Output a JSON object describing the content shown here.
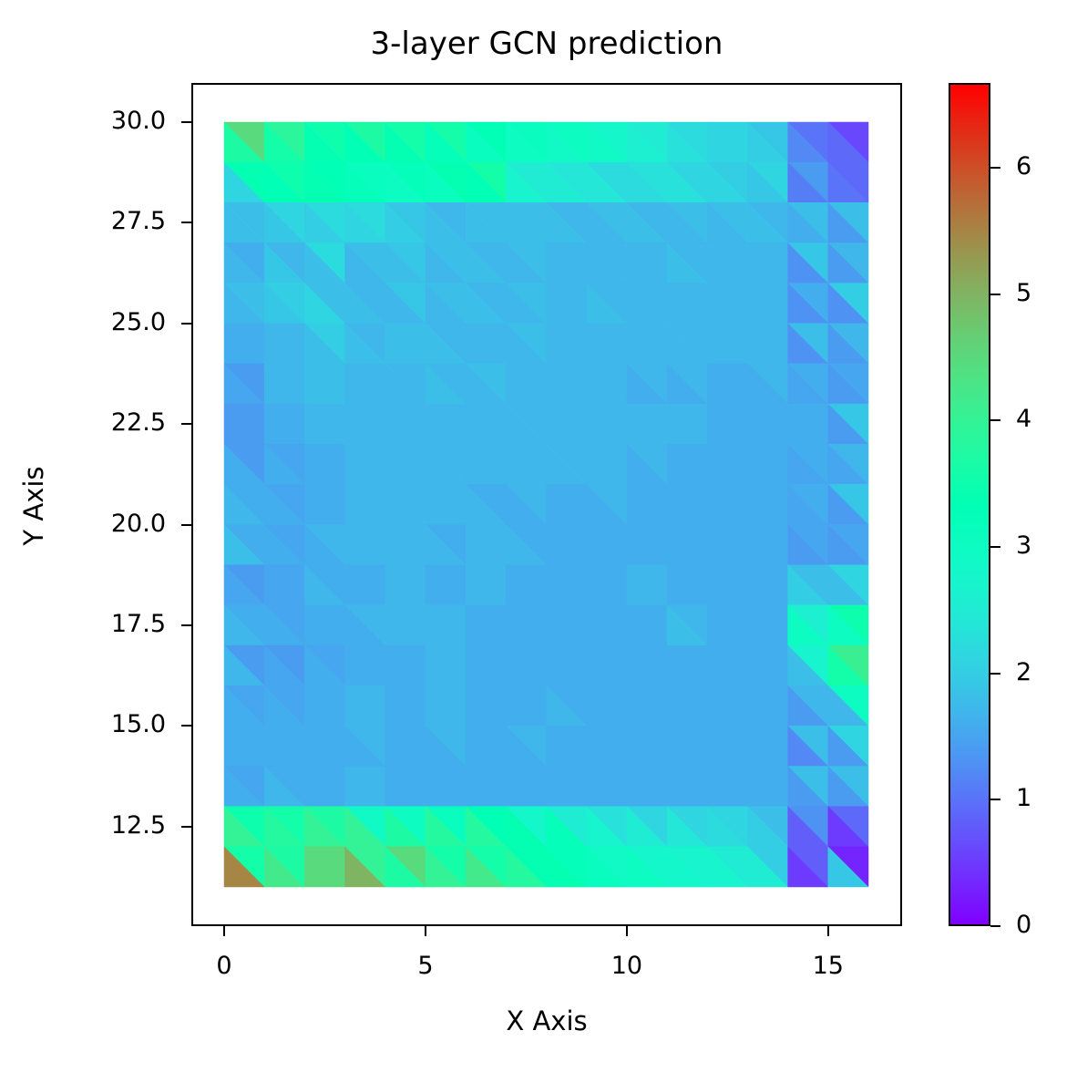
{
  "chart_data": {
    "type": "heatmap",
    "subtype": "tripcolor",
    "title": "3-layer GCN prediction",
    "xlabel": "X Axis",
    "ylabel": "Y Axis",
    "xlim": [
      -0.8,
      16.8
    ],
    "ylim": [
      10.2,
      31.0
    ],
    "x_ticks": [
      0,
      5,
      10,
      15
    ],
    "y_ticks": [
      12.5,
      15.0,
      17.5,
      20.0,
      22.5,
      25.0,
      27.5,
      30.0
    ],
    "x_tick_labels": [
      "0",
      "5",
      "10",
      "15"
    ],
    "y_tick_labels": [
      "12.5",
      "15.0",
      "17.5",
      "20.0",
      "22.5",
      "25.0",
      "27.5",
      "30.0"
    ],
    "grid_x_range": [
      0,
      16
    ],
    "grid_y_range": [
      11,
      30
    ],
    "colormap": "rainbow",
    "colorbar": {
      "range": [
        0,
        6.67
      ],
      "ticks": [
        0,
        1,
        2,
        3,
        4,
        5,
        6
      ],
      "tick_labels": [
        "0",
        "1",
        "2",
        "3",
        "4",
        "5",
        "6"
      ]
    },
    "grid": false,
    "legend": null,
    "cell_note": "Rows from top (y=30..29) to bottom (y=12..11); each cell = [upper-right triangle, lower-left triangle] values",
    "cells": [
      [
        [
          4.5,
          3.7
        ],
        [
          3.9,
          3.6
        ],
        [
          3.5,
          3.4
        ],
        [
          3.7,
          3.3
        ],
        [
          3.6,
          3.4
        ],
        [
          3.6,
          3.2
        ],
        [
          3.3,
          3.1
        ],
        [
          3.1,
          3.0
        ],
        [
          3.0,
          2.9
        ],
        [
          2.8,
          2.9
        ],
        [
          2.5,
          2.6
        ],
        [
          2.2,
          2.3
        ],
        [
          2.1,
          2.1
        ],
        [
          1.9,
          2.0
        ],
        [
          1.0,
          1.2
        ],
        [
          0.6,
          0.9
        ]
      ],
      [
        [
          3.4,
          2.1
        ],
        [
          3.5,
          3.3
        ],
        [
          3.3,
          3.4
        ],
        [
          3.1,
          3.2
        ],
        [
          3.2,
          3.0
        ],
        [
          3.4,
          3.1
        ],
        [
          3.6,
          3.3
        ],
        [
          2.5,
          2.7
        ],
        [
          2.4,
          2.5
        ],
        [
          2.2,
          2.4
        ],
        [
          2.3,
          2.2
        ],
        [
          2.1,
          2.3
        ],
        [
          2.0,
          2.1
        ],
        [
          2.1,
          1.9
        ],
        [
          1.4,
          1.1
        ],
        [
          0.9,
          1.0
        ]
      ],
      [
        [
          1.8,
          1.8
        ],
        [
          2.1,
          1.9
        ],
        [
          2.2,
          2.0
        ],
        [
          2.2,
          2.1
        ],
        [
          1.9,
          2.0
        ],
        [
          1.7,
          1.8
        ],
        [
          1.8,
          1.8
        ],
        [
          1.8,
          1.8
        ],
        [
          1.7,
          1.8
        ],
        [
          1.8,
          1.7
        ],
        [
          1.7,
          1.8
        ],
        [
          1.8,
          1.7
        ],
        [
          1.8,
          1.7
        ],
        [
          1.7,
          1.8
        ],
        [
          1.8,
          1.6
        ],
        [
          1.8,
          1.4
        ]
      ],
      [
        [
          1.6,
          1.7
        ],
        [
          1.7,
          1.9
        ],
        [
          2.2,
          1.8
        ],
        [
          1.8,
          1.7
        ],
        [
          1.9,
          1.8
        ],
        [
          1.8,
          1.7
        ],
        [
          1.7,
          1.8
        ],
        [
          1.8,
          1.7
        ],
        [
          1.7,
          1.7
        ],
        [
          1.7,
          1.7
        ],
        [
          1.7,
          1.7
        ],
        [
          1.7,
          1.8
        ],
        [
          1.7,
          1.7
        ],
        [
          1.7,
          1.7
        ],
        [
          1.9,
          1.3
        ],
        [
          1.7,
          1.4
        ]
      ],
      [
        [
          1.8,
          1.7
        ],
        [
          2.0,
          1.9
        ],
        [
          1.8,
          2.1
        ],
        [
          1.7,
          1.8
        ],
        [
          1.9,
          1.7
        ],
        [
          1.8,
          1.7
        ],
        [
          1.7,
          1.8
        ],
        [
          1.8,
          1.7
        ],
        [
          1.7,
          1.7
        ],
        [
          1.7,
          1.8
        ],
        [
          1.7,
          1.7
        ],
        [
          1.7,
          1.7
        ],
        [
          1.7,
          1.7
        ],
        [
          1.7,
          1.7
        ],
        [
          1.6,
          1.3
        ],
        [
          2.0,
          1.3
        ]
      ],
      [
        [
          1.6,
          1.6
        ],
        [
          1.7,
          1.7
        ],
        [
          2.0,
          1.8
        ],
        [
          1.7,
          1.8
        ],
        [
          1.8,
          1.8
        ],
        [
          1.7,
          1.8
        ],
        [
          1.7,
          1.7
        ],
        [
          1.8,
          1.7
        ],
        [
          1.7,
          1.7
        ],
        [
          1.7,
          1.7
        ],
        [
          1.7,
          1.7
        ],
        [
          1.7,
          1.7
        ],
        [
          1.7,
          1.7
        ],
        [
          1.7,
          1.7
        ],
        [
          1.8,
          1.3
        ],
        [
          1.7,
          1.4
        ]
      ],
      [
        [
          1.4,
          1.5
        ],
        [
          1.7,
          1.7
        ],
        [
          1.8,
          1.8
        ],
        [
          1.7,
          1.7
        ],
        [
          1.7,
          1.7
        ],
        [
          1.7,
          1.8
        ],
        [
          1.8,
          1.7
        ],
        [
          1.7,
          1.7
        ],
        [
          1.7,
          1.7
        ],
        [
          1.7,
          1.7
        ],
        [
          1.7,
          1.6
        ],
        [
          1.7,
          1.6
        ],
        [
          1.6,
          1.6
        ],
        [
          1.7,
          1.6
        ],
        [
          1.6,
          1.5
        ],
        [
          1.5,
          1.4
        ]
      ],
      [
        [
          1.4,
          1.4
        ],
        [
          1.6,
          1.6
        ],
        [
          1.7,
          1.7
        ],
        [
          1.7,
          1.7
        ],
        [
          1.7,
          1.7
        ],
        [
          1.7,
          1.7
        ],
        [
          1.7,
          1.7
        ],
        [
          1.7,
          1.7
        ],
        [
          1.7,
          1.7
        ],
        [
          1.7,
          1.7
        ],
        [
          1.7,
          1.7
        ],
        [
          1.7,
          1.7
        ],
        [
          1.6,
          1.6
        ],
        [
          1.6,
          1.6
        ],
        [
          1.6,
          1.6
        ],
        [
          1.9,
          1.4
        ]
      ],
      [
        [
          1.4,
          1.6
        ],
        [
          1.5,
          1.6
        ],
        [
          1.6,
          1.6
        ],
        [
          1.7,
          1.7
        ],
        [
          1.7,
          1.7
        ],
        [
          1.7,
          1.7
        ],
        [
          1.7,
          1.7
        ],
        [
          1.7,
          1.7
        ],
        [
          1.7,
          1.7
        ],
        [
          1.7,
          1.7
        ],
        [
          1.7,
          1.6
        ],
        [
          1.6,
          1.6
        ],
        [
          1.6,
          1.6
        ],
        [
          1.6,
          1.6
        ],
        [
          1.6,
          1.5
        ],
        [
          1.7,
          1.5
        ]
      ],
      [
        [
          1.6,
          1.7
        ],
        [
          1.5,
          1.6
        ],
        [
          1.6,
          1.6
        ],
        [
          1.7,
          1.7
        ],
        [
          1.7,
          1.7
        ],
        [
          1.7,
          1.7
        ],
        [
          1.6,
          1.7
        ],
        [
          1.7,
          1.6
        ],
        [
          1.6,
          1.6
        ],
        [
          1.7,
          1.6
        ],
        [
          1.6,
          1.6
        ],
        [
          1.6,
          1.6
        ],
        [
          1.6,
          1.6
        ],
        [
          1.6,
          1.6
        ],
        [
          1.6,
          1.5
        ],
        [
          1.9,
          1.4
        ]
      ],
      [
        [
          1.6,
          1.8
        ],
        [
          1.5,
          1.6
        ],
        [
          1.7,
          1.6
        ],
        [
          1.7,
          1.7
        ],
        [
          1.7,
          1.7
        ],
        [
          1.6,
          1.7
        ],
        [
          1.7,
          1.7
        ],
        [
          1.6,
          1.7
        ],
        [
          1.6,
          1.6
        ],
        [
          1.6,
          1.6
        ],
        [
          1.6,
          1.6
        ],
        [
          1.6,
          1.6
        ],
        [
          1.6,
          1.6
        ],
        [
          1.6,
          1.6
        ],
        [
          1.5,
          1.4
        ],
        [
          1.5,
          1.4
        ]
      ],
      [
        [
          1.4,
          1.5
        ],
        [
          1.5,
          1.5
        ],
        [
          1.6,
          1.7
        ],
        [
          1.6,
          1.6
        ],
        [
          1.7,
          1.7
        ],
        [
          1.6,
          1.6
        ],
        [
          1.7,
          1.7
        ],
        [
          1.6,
          1.6
        ],
        [
          1.6,
          1.6
        ],
        [
          1.6,
          1.6
        ],
        [
          1.7,
          1.7
        ],
        [
          1.6,
          1.6
        ],
        [
          1.6,
          1.6
        ],
        [
          1.6,
          1.6
        ],
        [
          1.8,
          2.0
        ],
        [
          2.1,
          1.8
        ]
      ],
      [
        [
          1.6,
          1.7
        ],
        [
          1.5,
          1.6
        ],
        [
          1.6,
          1.6
        ],
        [
          1.7,
          1.6
        ],
        [
          1.7,
          1.7
        ],
        [
          1.7,
          1.7
        ],
        [
          1.6,
          1.6
        ],
        [
          1.6,
          1.6
        ],
        [
          1.6,
          1.6
        ],
        [
          1.6,
          1.6
        ],
        [
          1.6,
          1.6
        ],
        [
          1.7,
          1.8
        ],
        [
          1.6,
          1.6
        ],
        [
          1.6,
          1.6
        ],
        [
          2.6,
          3.0
        ],
        [
          3.5,
          3.0
        ]
      ],
      [
        [
          1.4,
          1.7
        ],
        [
          1.4,
          1.5
        ],
        [
          1.5,
          1.6
        ],
        [
          1.6,
          1.6
        ],
        [
          1.6,
          1.6
        ],
        [
          1.7,
          1.7
        ],
        [
          1.6,
          1.6
        ],
        [
          1.6,
          1.6
        ],
        [
          1.6,
          1.6
        ],
        [
          1.6,
          1.6
        ],
        [
          1.6,
          1.6
        ],
        [
          1.6,
          1.6
        ],
        [
          1.6,
          1.6
        ],
        [
          1.6,
          1.6
        ],
        [
          2.7,
          1.8
        ],
        [
          4.1,
          3.6
        ]
      ],
      [
        [
          1.5,
          1.6
        ],
        [
          1.5,
          1.6
        ],
        [
          1.6,
          1.6
        ],
        [
          1.7,
          1.7
        ],
        [
          1.6,
          1.6
        ],
        [
          1.7,
          1.7
        ],
        [
          1.6,
          1.6
        ],
        [
          1.6,
          1.6
        ],
        [
          1.6,
          1.7
        ],
        [
          1.6,
          1.6
        ],
        [
          1.6,
          1.6
        ],
        [
          1.6,
          1.6
        ],
        [
          1.6,
          1.6
        ],
        [
          1.6,
          1.6
        ],
        [
          1.7,
          1.4
        ],
        [
          3.0,
          1.7
        ]
      ],
      [
        [
          1.6,
          1.6
        ],
        [
          1.6,
          1.6
        ],
        [
          1.6,
          1.6
        ],
        [
          1.7,
          1.6
        ],
        [
          1.6,
          1.6
        ],
        [
          1.7,
          1.6
        ],
        [
          1.6,
          1.6
        ],
        [
          1.7,
          1.6
        ],
        [
          1.6,
          1.6
        ],
        [
          1.6,
          1.6
        ],
        [
          1.6,
          1.6
        ],
        [
          1.6,
          1.6
        ],
        [
          1.6,
          1.6
        ],
        [
          1.6,
          1.6
        ],
        [
          1.8,
          1.2
        ],
        [
          2.1,
          1.4
        ]
      ],
      [
        [
          1.5,
          1.6
        ],
        [
          1.6,
          1.7
        ],
        [
          1.6,
          1.6
        ],
        [
          1.7,
          1.7
        ],
        [
          1.6,
          1.6
        ],
        [
          1.6,
          1.6
        ],
        [
          1.6,
          1.6
        ],
        [
          1.6,
          1.6
        ],
        [
          1.6,
          1.6
        ],
        [
          1.6,
          1.6
        ],
        [
          1.6,
          1.6
        ],
        [
          1.6,
          1.6
        ],
        [
          1.6,
          1.6
        ],
        [
          1.6,
          1.6
        ],
        [
          1.8,
          1.4
        ],
        [
          1.8,
          1.4
        ]
      ],
      [
        [
          3.5,
          4.0
        ],
        [
          3.6,
          3.8
        ],
        [
          3.7,
          4.0
        ],
        [
          2.9,
          4.0
        ],
        [
          3.0,
          3.7
        ],
        [
          3.1,
          3.8
        ],
        [
          3.3,
          3.8
        ],
        [
          2.8,
          3.4
        ],
        [
          2.5,
          3.2
        ],
        [
          2.3,
          2.7
        ],
        [
          2.1,
          2.5
        ],
        [
          2.1,
          2.4
        ],
        [
          2.1,
          2.2
        ],
        [
          1.8,
          2.0
        ],
        [
          1.3,
          0.8
        ],
        [
          0.9,
          0.5
        ]
      ],
      [
        [
          3.6,
          5.5
        ],
        [
          3.7,
          4.2
        ],
        [
          4.5,
          4.5
        ],
        [
          4.0,
          5.0
        ],
        [
          4.5,
          3.7
        ],
        [
          3.6,
          4.0
        ],
        [
          3.6,
          4.2
        ],
        [
          3.4,
          3.8
        ],
        [
          3.2,
          3.4
        ],
        [
          2.9,
          3.1
        ],
        [
          2.8,
          3.0
        ],
        [
          2.7,
          2.8
        ],
        [
          2.5,
          2.7
        ],
        [
          2.0,
          2.5
        ],
        [
          0.8,
          0.5
        ],
        [
          0.3,
          1.9
        ]
      ]
    ]
  }
}
